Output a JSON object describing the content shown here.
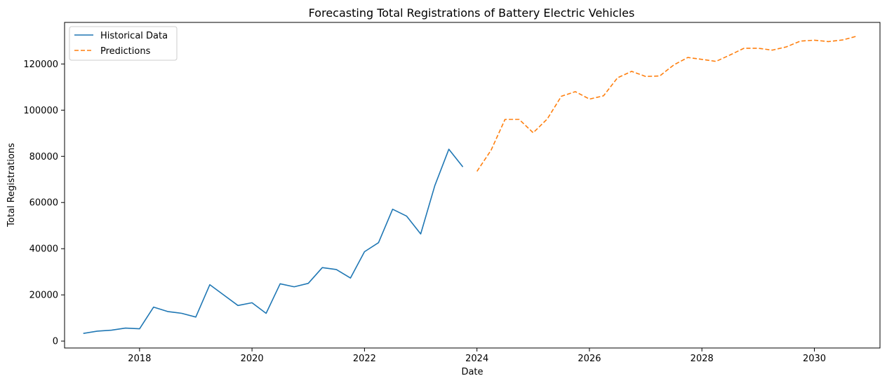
{
  "chart_data": {
    "type": "line",
    "title": "Forecasting Total Registrations of Battery Electric Vehicles",
    "xlabel": "Date",
    "ylabel": "Total Registrations",
    "xlim": [
      "2016-09",
      "2031-03"
    ],
    "ylim": [
      -3000,
      138000
    ],
    "x_ticks": [
      "2018",
      "2020",
      "2022",
      "2024",
      "2026",
      "2028",
      "2030"
    ],
    "y_ticks": [
      0,
      20000,
      40000,
      60000,
      80000,
      100000,
      120000
    ],
    "grid": false,
    "legend_position": "top-left",
    "series": [
      {
        "name": "Historical Data",
        "color": "#1f77b4",
        "style": "solid",
        "x": [
          "2017-01",
          "2017-04",
          "2017-07",
          "2017-10",
          "2018-01",
          "2018-04",
          "2018-07",
          "2018-10",
          "2019-01",
          "2019-04",
          "2019-07",
          "2019-10",
          "2020-01",
          "2020-04",
          "2020-07",
          "2020-10",
          "2021-01",
          "2021-04",
          "2021-07",
          "2021-10",
          "2022-01",
          "2022-04",
          "2022-07",
          "2022-10",
          "2023-01",
          "2023-04",
          "2023-07",
          "2023-10"
        ],
        "y": [
          3300,
          4300,
          4700,
          5600,
          5300,
          14700,
          12800,
          12000,
          10400,
          24400,
          19900,
          15400,
          16600,
          12000,
          24800,
          23500,
          25000,
          31800,
          31000,
          27300,
          38700,
          42600,
          57100,
          54100,
          46400,
          67300,
          83100,
          75400
        ]
      },
      {
        "name": "Predictions",
        "color": "#ff7f0e",
        "style": "dashed",
        "x": [
          "2024-01",
          "2024-04",
          "2024-07",
          "2024-10",
          "2025-01",
          "2025-04",
          "2025-07",
          "2025-10",
          "2026-01",
          "2026-04",
          "2026-07",
          "2026-10",
          "2027-01",
          "2027-04",
          "2027-07",
          "2027-10",
          "2028-01",
          "2028-04",
          "2028-07",
          "2028-10",
          "2029-01",
          "2029-04",
          "2029-07",
          "2029-10",
          "2030-01",
          "2030-04",
          "2030-07",
          "2030-10"
        ],
        "y": [
          73500,
          82600,
          96000,
          96000,
          90200,
          96200,
          106000,
          108000,
          104800,
          106200,
          114000,
          116800,
          114600,
          114800,
          119600,
          122800,
          122000,
          121100,
          123900,
          126800,
          126800,
          126000,
          127400,
          129900,
          130300,
          129700,
          130400,
          132000
        ]
      }
    ]
  }
}
